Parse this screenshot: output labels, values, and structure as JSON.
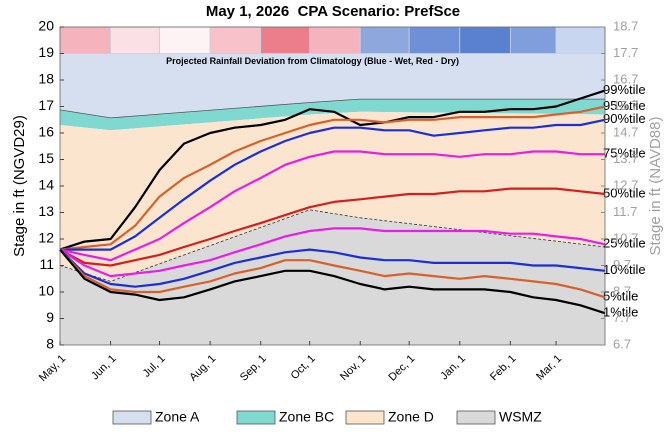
{
  "chart_data": {
    "type": "line",
    "title": "May 1, 2026  CPA Scenario: PrefSce",
    "y_label": "Stage in ft (NGVD29)",
    "y2_label": "Stage in ft (NAVD88)",
    "xlim": [
      0,
      334
    ],
    "xticks": [
      {
        "value": 0,
        "label": "May, 1"
      },
      {
        "value": 31,
        "label": "Jun, 1"
      },
      {
        "value": 61,
        "label": "Jul, 1"
      },
      {
        "value": 92,
        "label": "Aug, 1"
      },
      {
        "value": 123,
        "label": "Sep, 1"
      },
      {
        "value": 153,
        "label": "Oct, 1"
      },
      {
        "value": 184,
        "label": "Nov, 1"
      },
      {
        "value": 214,
        "label": "Dec, 1"
      },
      {
        "value": 245,
        "label": "Jan, 1"
      },
      {
        "value": 276,
        "label": "Feb, 1"
      },
      {
        "value": 304,
        "label": "Mar, 1"
      }
    ],
    "ylim": [
      8,
      20
    ],
    "yticks": [
      8,
      9,
      10,
      11,
      12,
      13,
      14,
      15,
      16,
      17,
      18,
      19,
      20
    ],
    "y2lim": [
      6.7,
      18.7
    ],
    "y2ticks": [
      6.7,
      7.7,
      8.7,
      9.7,
      10.7,
      11.7,
      12.7,
      13.7,
      14.7,
      15.7,
      16.7,
      17.7,
      18.7
    ],
    "rainfall_band": {
      "label": "Projected Rainfall Deviation from Climatology (Blue - Wet, Red - Dry)",
      "colors": [
        "#f5b4bd",
        "#fbe1e5",
        "#fdf2f4",
        "#f7c2c9",
        "#ec7d8a",
        "#f5b4bd",
        "#8ea8de",
        "#6f90d6",
        "#5a81cf",
        "#7f9edb",
        "#c9d6ef"
      ]
    },
    "zones": [
      {
        "name": "Zone A",
        "color": "#d5dff0",
        "x": [
          0,
          31,
          153,
          184,
          334
        ],
        "upper": [
          19,
          19,
          19,
          19,
          19
        ],
        "lower": [
          16.87,
          16.57,
          17.15,
          17.28,
          17.28
        ]
      },
      {
        "name": "Zone BC",
        "color": "#80d9d1",
        "x": [
          0,
          31,
          153,
          184,
          334
        ],
        "upper": [
          16.87,
          16.57,
          17.15,
          17.28,
          17.28
        ],
        "lower": [
          16.3,
          16.1,
          16.7,
          16.8,
          16.7
        ]
      },
      {
        "name": "Zone D",
        "color": "#fbe5cf",
        "x": [
          0,
          31,
          153,
          184,
          334
        ],
        "upper": [
          16.3,
          16.1,
          16.7,
          16.8,
          16.7
        ],
        "lower": [
          11.0,
          10.4,
          13.1,
          12.8,
          11.7
        ]
      },
      {
        "name": "WSMZ",
        "color": "#d9d9d9",
        "x": [
          0,
          31,
          153,
          184,
          334
        ],
        "upper": [
          11.0,
          10.4,
          13.1,
          12.8,
          11.7
        ],
        "lower": [
          8,
          8,
          8,
          8,
          8
        ]
      }
    ],
    "x": [
      0,
      15,
      31,
      46,
      61,
      76,
      92,
      107,
      123,
      138,
      153,
      168,
      184,
      199,
      214,
      229,
      245,
      260,
      276,
      290,
      304,
      319,
      334
    ],
    "series": [
      {
        "name": "99%tile",
        "color": "#000000",
        "values": [
          11.6,
          11.9,
          12.0,
          13.2,
          14.6,
          15.6,
          16.0,
          16.2,
          16.3,
          16.5,
          16.9,
          16.8,
          16.3,
          16.4,
          16.6,
          16.6,
          16.8,
          16.8,
          16.9,
          16.9,
          17.0,
          17.3,
          17.6
        ]
      },
      {
        "name": "95%tile",
        "color": "#d7612b",
        "values": [
          11.6,
          11.7,
          11.8,
          12.5,
          13.6,
          14.3,
          14.8,
          15.3,
          15.7,
          16.0,
          16.3,
          16.5,
          16.5,
          16.4,
          16.5,
          16.5,
          16.6,
          16.6,
          16.6,
          16.6,
          16.7,
          16.8,
          17.0
        ]
      },
      {
        "name": "90%tile",
        "color": "#1c2fd6",
        "values": [
          11.6,
          11.6,
          11.6,
          12.1,
          12.8,
          13.5,
          14.2,
          14.8,
          15.3,
          15.7,
          16.0,
          16.2,
          16.2,
          16.1,
          16.1,
          15.9,
          16.0,
          16.1,
          16.2,
          16.2,
          16.3,
          16.3,
          16.5
        ]
      },
      {
        "name": "75%tile",
        "color": "#e81ee8",
        "values": [
          11.6,
          11.4,
          11.2,
          11.6,
          12.0,
          12.6,
          13.2,
          13.8,
          14.3,
          14.8,
          15.1,
          15.3,
          15.3,
          15.2,
          15.2,
          15.2,
          15.1,
          15.2,
          15.2,
          15.3,
          15.3,
          15.2,
          15.2
        ]
      },
      {
        "name": "50%tile",
        "color": "#d41f1f",
        "values": [
          11.6,
          11.1,
          11.0,
          11.2,
          11.4,
          11.7,
          12.0,
          12.3,
          12.6,
          12.9,
          13.2,
          13.4,
          13.5,
          13.6,
          13.7,
          13.7,
          13.8,
          13.8,
          13.9,
          13.9,
          13.9,
          13.8,
          13.7
        ]
      },
      {
        "name": "25%tile",
        "color": "#e81ee8",
        "values": [
          11.6,
          11.0,
          10.6,
          10.7,
          10.8,
          11.0,
          11.2,
          11.5,
          11.8,
          12.1,
          12.3,
          12.4,
          12.4,
          12.3,
          12.3,
          12.3,
          12.3,
          12.3,
          12.2,
          12.2,
          12.1,
          12.0,
          11.8
        ]
      },
      {
        "name": "10%tile",
        "color": "#1c2fd6",
        "values": [
          11.6,
          10.7,
          10.3,
          10.2,
          10.3,
          10.5,
          10.8,
          11.1,
          11.3,
          11.5,
          11.6,
          11.5,
          11.3,
          11.2,
          11.2,
          11.1,
          11.1,
          11.1,
          11.1,
          11.0,
          11.0,
          10.9,
          10.8
        ]
      },
      {
        "name": "5%tile",
        "color": "#d7612b",
        "values": [
          11.6,
          10.6,
          10.1,
          10.0,
          10.0,
          10.2,
          10.4,
          10.7,
          10.9,
          11.2,
          11.2,
          11.0,
          10.8,
          10.6,
          10.7,
          10.6,
          10.5,
          10.6,
          10.5,
          10.4,
          10.3,
          10.1,
          9.8
        ]
      },
      {
        "name": "1%tile",
        "color": "#000000",
        "values": [
          11.6,
          10.5,
          10.0,
          9.9,
          9.7,
          9.8,
          10.1,
          10.4,
          10.6,
          10.8,
          10.8,
          10.6,
          10.3,
          10.1,
          10.2,
          10.1,
          10.1,
          10.1,
          10.0,
          9.8,
          9.7,
          9.5,
          9.2
        ]
      }
    ]
  }
}
